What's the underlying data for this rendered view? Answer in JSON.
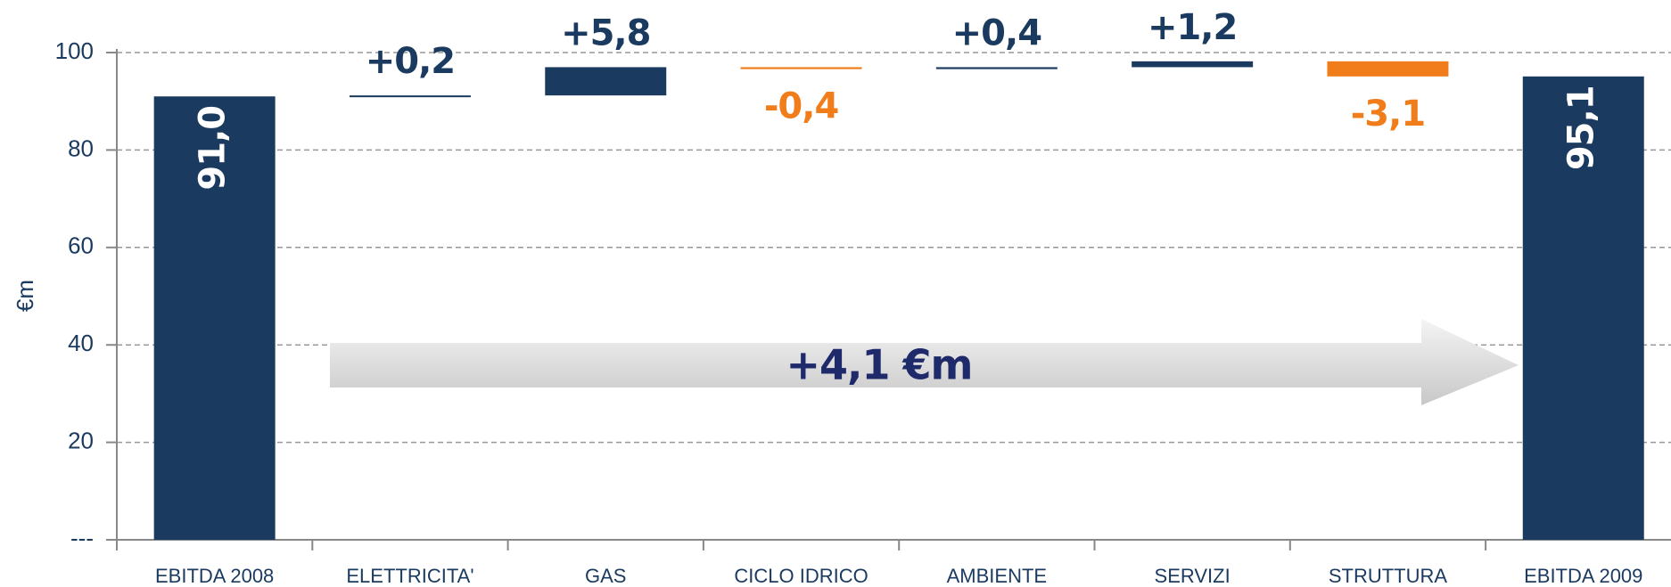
{
  "chart_data": {
    "type": "waterfall",
    "y_label": "€m",
    "categories": [
      "EBITDA 2008",
      "ELETTRICITA'",
      "GAS",
      "CICLO IDRICO",
      "AMBIENTE",
      "SERVIZI",
      "STRUTTURA",
      "EBITDA 2009"
    ],
    "values": [
      91.0,
      0.2,
      5.8,
      -0.4,
      0.4,
      1.2,
      -3.1,
      95.1
    ],
    "value_labels": [
      "91,0",
      "+0,2",
      "+5,8",
      "-0,4",
      "+0,4",
      "+1,2",
      "-3,1",
      "95,1"
    ],
    "is_total": [
      true,
      false,
      false,
      false,
      false,
      false,
      false,
      true
    ],
    "colors": {
      "total": "#1b3a5f",
      "increase": "#1b3a5f",
      "decrease": "#f07d1a"
    },
    "ylim": [
      0,
      100
    ],
    "yticks": [
      {
        "value": 0,
        "label": "---"
      },
      20,
      40,
      60,
      80,
      100
    ],
    "grid": true,
    "annotation": "+4,1 €m"
  }
}
